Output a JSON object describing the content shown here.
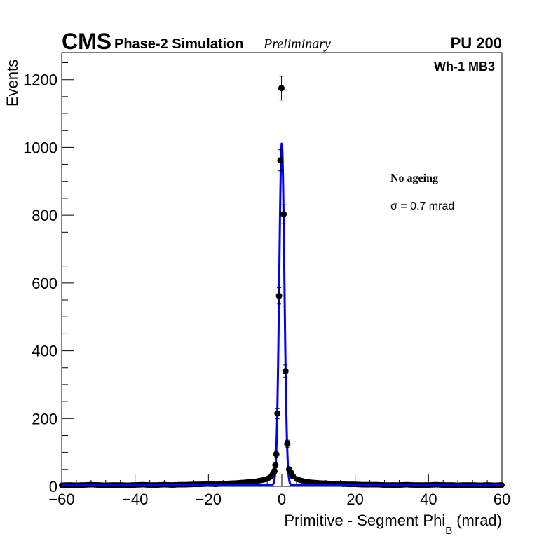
{
  "chart_data": {
    "type": "scatter",
    "title_cms": "CMS",
    "title_sim": "Phase-2 Simulation",
    "title_prelim": "Preliminary",
    "pileup": "PU 200",
    "region": "Wh-1 MB3",
    "annotation1": "No ageing",
    "annotation2": "σ = 0.7 mrad",
    "xlabel": "Primitive - Segment Phi",
    "xlabel_sub": "B",
    "xlabel_unit": "(mrad)",
    "ylabel": "Events",
    "xlim": [
      -60,
      60
    ],
    "ylim": [
      0,
      1280
    ],
    "xticks": [
      "−60",
      "−40",
      "−20",
      "0",
      "20",
      "40",
      "60"
    ],
    "xtick_values": [
      -60,
      -40,
      -20,
      0,
      20,
      40,
      60
    ],
    "yticks": [
      "0",
      "200",
      "400",
      "600",
      "800",
      "1000",
      "1200"
    ],
    "ytick_values": [
      0,
      200,
      400,
      600,
      800,
      1000,
      1200
    ],
    "peak_points": {
      "x": [
        -2.5,
        -2.0,
        -1.75,
        -1.5,
        -1.2,
        -0.75,
        -0.4,
        -0.1,
        0.5,
        1.0,
        1.5,
        2.0,
        2.5,
        3.0
      ],
      "y": [
        35,
        45,
        63,
        95,
        215,
        562,
        962,
        1175,
        803,
        340,
        125,
        50,
        40,
        30
      ],
      "err": [
        6,
        7,
        8,
        10,
        15,
        24,
        31,
        35,
        28,
        18,
        11,
        7,
        6,
        5
      ]
    },
    "background_points": {
      "x": [
        -60,
        -58,
        -56,
        -54,
        -52,
        -50,
        -48,
        -46,
        -44,
        -42,
        -40,
        -38,
        -36,
        -34,
        -32,
        -30,
        -28,
        -26,
        -24,
        -22,
        -20,
        -18,
        -16,
        -14,
        -12,
        -10,
        -9,
        -8,
        -7,
        -6,
        -5,
        -4,
        -3.5,
        -3,
        4,
        5,
        6,
        7,
        8,
        9,
        10,
        12,
        14,
        16,
        18,
        20,
        22,
        24,
        26,
        28,
        30,
        32,
        34,
        36,
        38,
        40,
        42,
        44,
        46,
        48,
        50,
        52,
        54,
        56,
        58,
        60
      ],
      "y": [
        3,
        4,
        3,
        4,
        5,
        4,
        3,
        4,
        4,
        3,
        4,
        5,
        4,
        4,
        5,
        4,
        5,
        5,
        6,
        6,
        7,
        6,
        8,
        9,
        10,
        12,
        13,
        14,
        15,
        17,
        19,
        22,
        25,
        28,
        22,
        18,
        15,
        13,
        12,
        11,
        10,
        9,
        8,
        7,
        6,
        6,
        5,
        5,
        5,
        4,
        4,
        4,
        5,
        4,
        4,
        4,
        5,
        4,
        4,
        3,
        4,
        4,
        3,
        4,
        3,
        4
      ]
    },
    "fit": {
      "name": "Gaussian fit",
      "amplitude": 1010,
      "mean": 0.0,
      "sigma": 0.7,
      "baseline": 3,
      "color": "#0000ff"
    }
  }
}
